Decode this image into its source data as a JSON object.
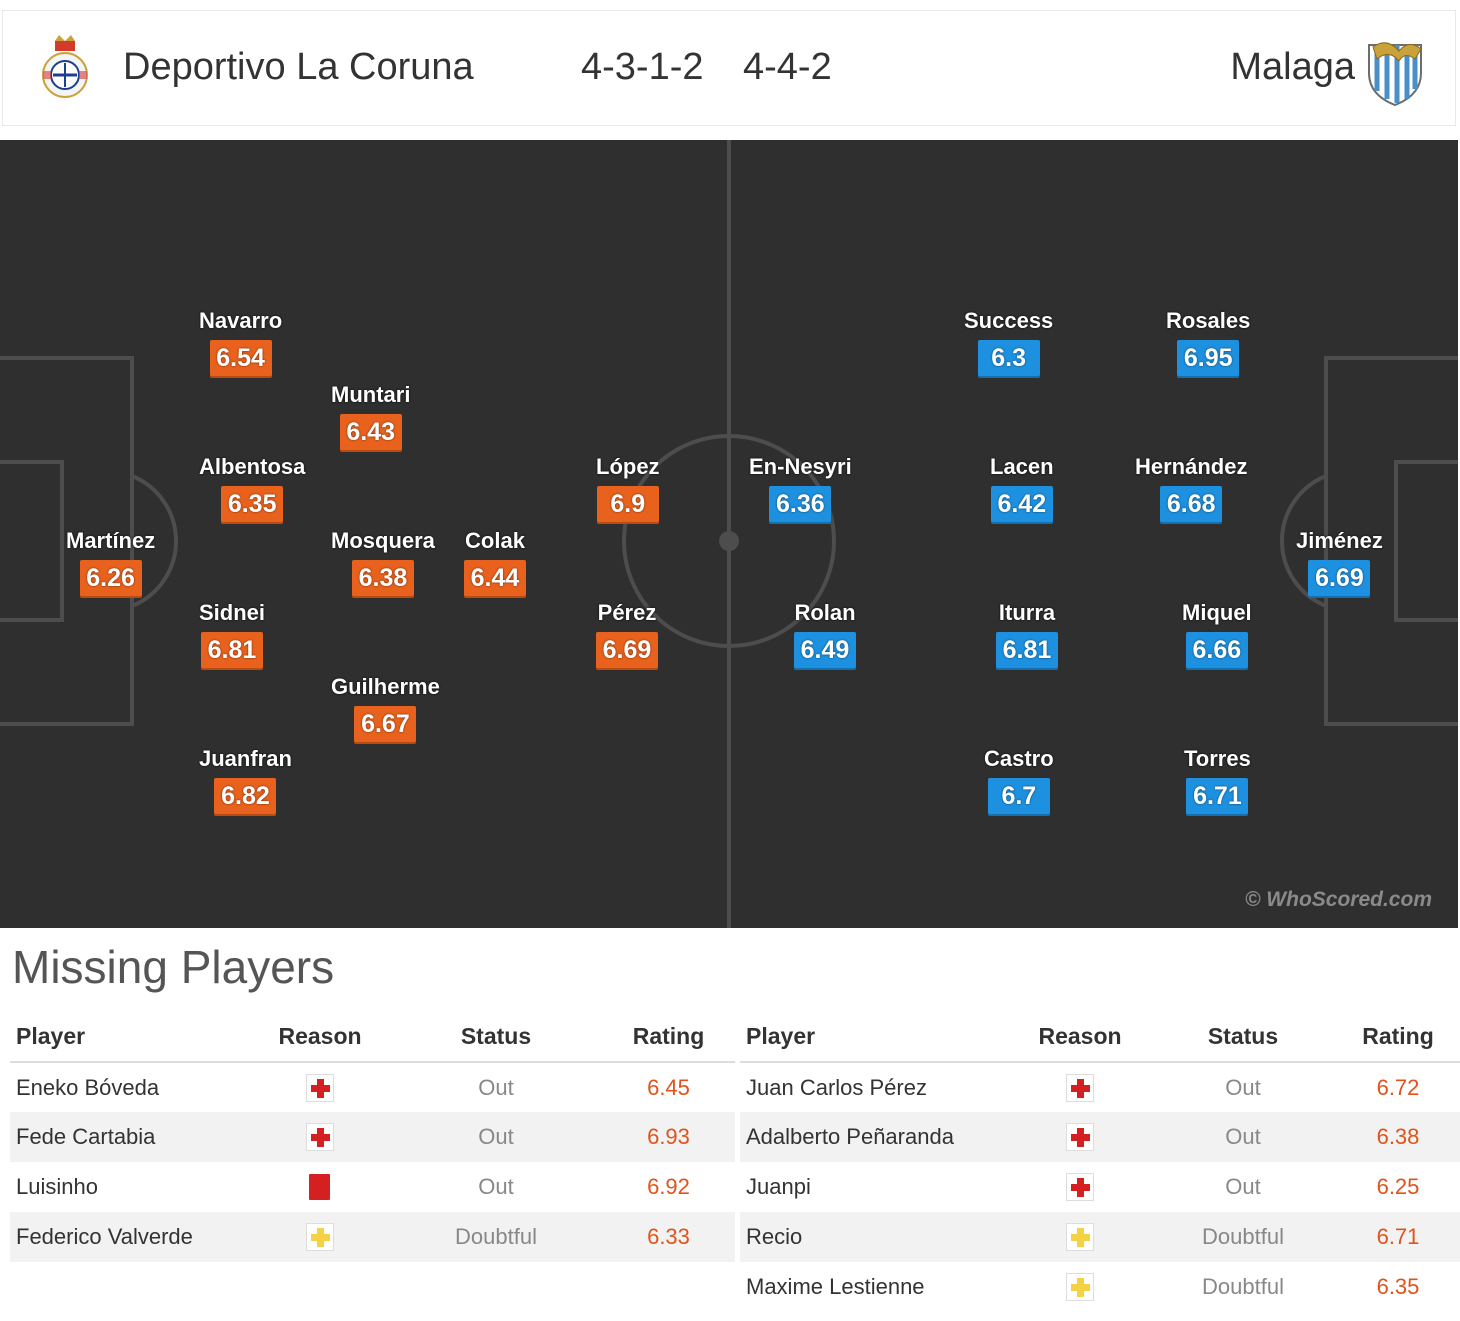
{
  "header": {
    "home_team": "Deportivo La Coruna",
    "home_formation": "4-3-1-2",
    "away_formation": "4-4-2",
    "away_team": "Malaga"
  },
  "pitch": {
    "watermark": "© WhoScored.com",
    "home_players": [
      {
        "name": "Navarro",
        "rating": "6.54"
      },
      {
        "name": "Muntari",
        "rating": "6.43"
      },
      {
        "name": "Albentosa",
        "rating": "6.35"
      },
      {
        "name": "Martínez",
        "rating": "6.26"
      },
      {
        "name": "Mosquera",
        "rating": "6.38"
      },
      {
        "name": "Colak",
        "rating": "6.44"
      },
      {
        "name": "Sidnei",
        "rating": "6.81"
      },
      {
        "name": "Guilherme",
        "rating": "6.67"
      },
      {
        "name": "Juanfran",
        "rating": "6.82"
      },
      {
        "name": "López",
        "rating": "6.9"
      },
      {
        "name": "Pérez",
        "rating": "6.69"
      }
    ],
    "away_players": [
      {
        "name": "Success",
        "rating": "6.3"
      },
      {
        "name": "Rosales",
        "rating": "6.95"
      },
      {
        "name": "En-Nesyri",
        "rating": "6.36"
      },
      {
        "name": "Lacen",
        "rating": "6.42"
      },
      {
        "name": "Hernández",
        "rating": "6.68"
      },
      {
        "name": "Jiménez",
        "rating": "6.69"
      },
      {
        "name": "Rolan",
        "rating": "6.49"
      },
      {
        "name": "Iturra",
        "rating": "6.81"
      },
      {
        "name": "Miquel",
        "rating": "6.66"
      },
      {
        "name": "Castro",
        "rating": "6.7"
      },
      {
        "name": "Torres",
        "rating": "6.71"
      }
    ]
  },
  "missing": {
    "title": "Missing Players",
    "columns": {
      "player": "Player",
      "reason": "Reason",
      "status": "Status",
      "rating": "Rating"
    },
    "home": [
      {
        "player": "Eneko Bóveda",
        "reason": "injury-icon",
        "status": "Out",
        "rating": "6.45"
      },
      {
        "player": "Fede Cartabia",
        "reason": "injury-icon",
        "status": "Out",
        "rating": "6.93"
      },
      {
        "player": "Luisinho",
        "reason": "red-card-icon",
        "status": "Out",
        "rating": "6.92"
      },
      {
        "player": "Federico Valverde",
        "reason": "doubtful-icon",
        "status": "Doubtful",
        "rating": "6.33"
      }
    ],
    "away": [
      {
        "player": "Juan Carlos Pérez",
        "reason": "injury-icon",
        "status": "Out",
        "rating": "6.72"
      },
      {
        "player": "Adalberto Peñaranda",
        "reason": "injury-icon",
        "status": "Out",
        "rating": "6.38"
      },
      {
        "player": "Juanpi",
        "reason": "injury-icon",
        "status": "Out",
        "rating": "6.25"
      },
      {
        "player": "Recio",
        "reason": "doubtful-icon",
        "status": "Doubtful",
        "rating": "6.71"
      },
      {
        "player": "Maxime Lestienne",
        "reason": "doubtful-icon",
        "status": "Doubtful",
        "rating": "6.35"
      }
    ]
  },
  "colors": {
    "home_rating": "#e9621d",
    "away_rating": "#1d91e0",
    "pitch": "#2f2f2f",
    "missing_rating": "#e0541b"
  }
}
